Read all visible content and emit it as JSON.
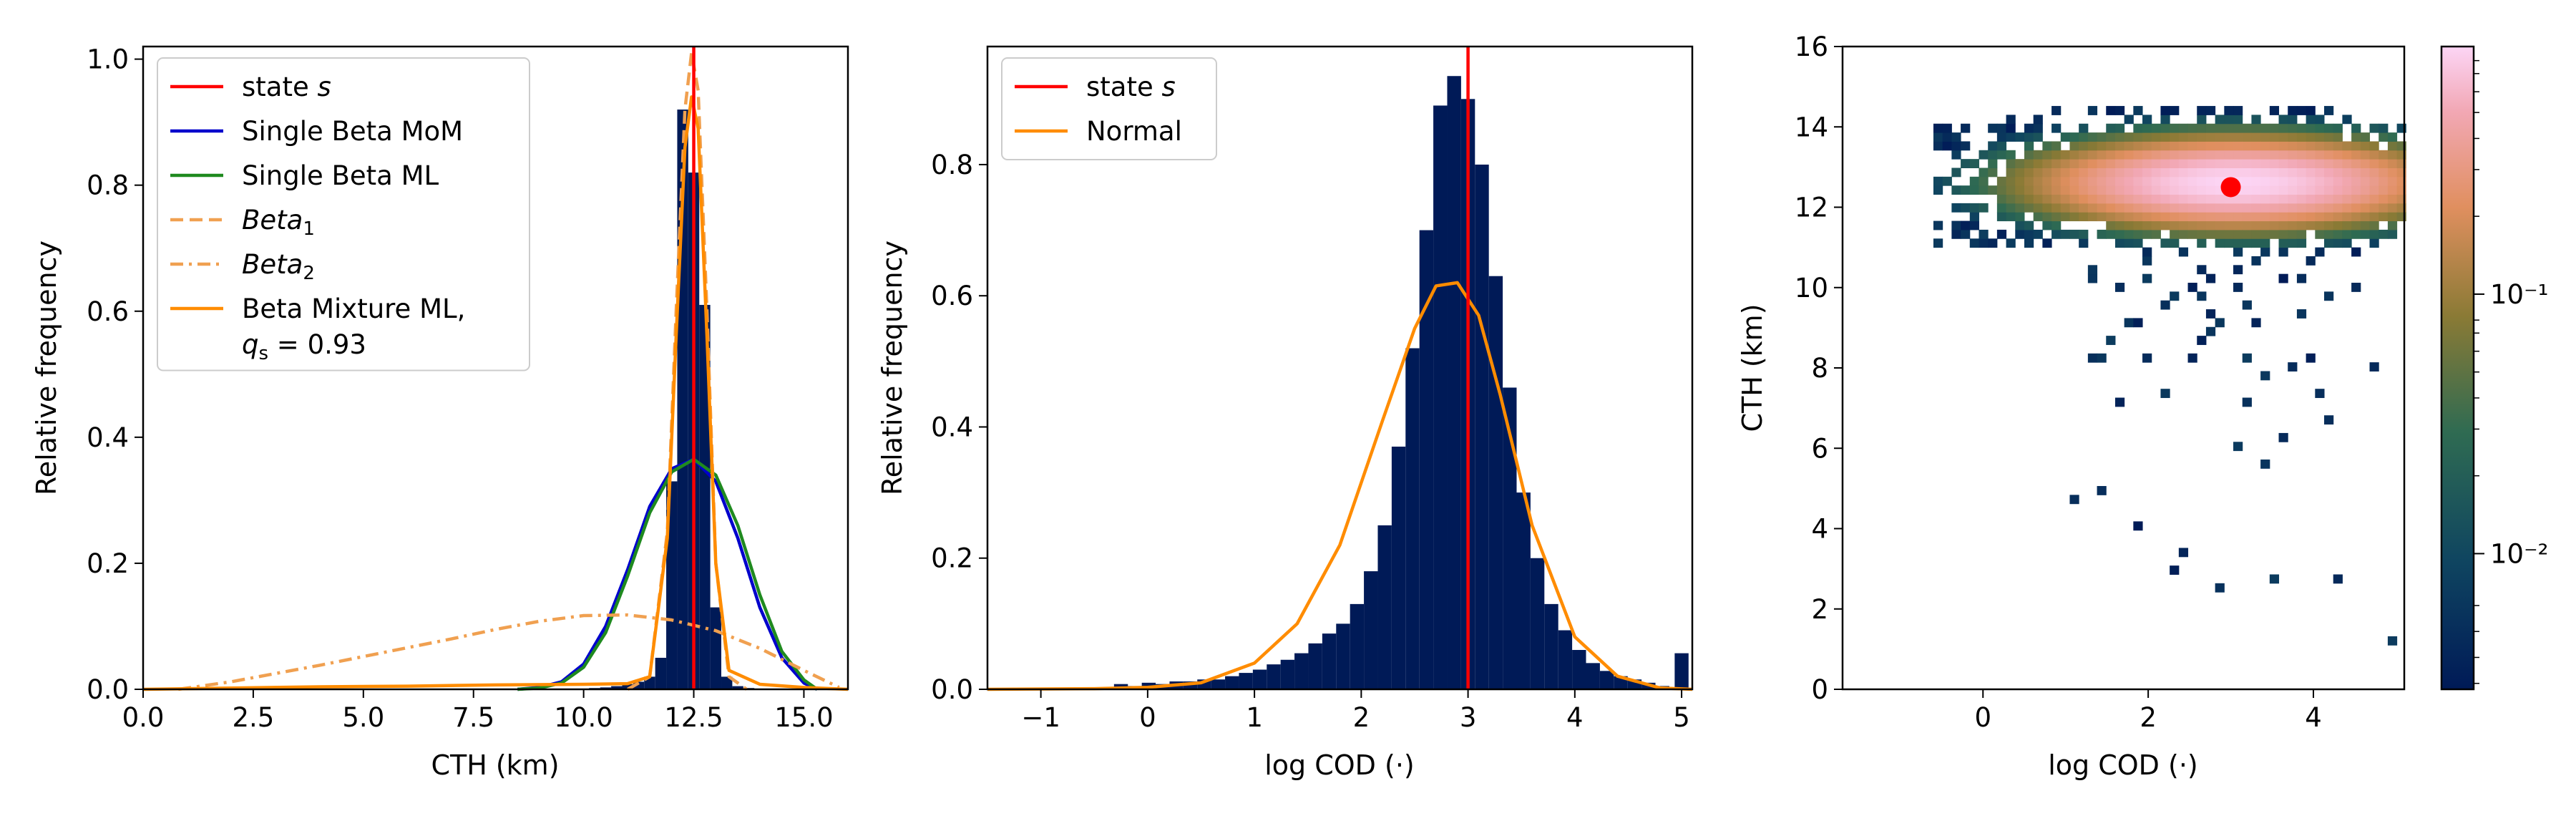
{
  "chart_data": [
    {
      "type": "bar",
      "xlabel": "CTH (km)",
      "ylabel": "Relative frequency",
      "xlim": [
        0,
        16
      ],
      "ylim": [
        0,
        1.02
      ],
      "xticks": [
        "0.0",
        "2.5",
        "5.0",
        "7.5",
        "10.0",
        "12.5",
        "15.0"
      ],
      "yticks": [
        "0.0",
        "0.2",
        "0.4",
        "0.6",
        "0.8",
        "1.0"
      ],
      "hist_color": "#001a57",
      "hist_bin_width": 0.25,
      "histogram": [
        [
          10.25,
          0.002
        ],
        [
          10.5,
          0.003
        ],
        [
          10.75,
          0.005
        ],
        [
          11.0,
          0.008
        ],
        [
          11.25,
          0.012
        ],
        [
          11.5,
          0.02
        ],
        [
          11.75,
          0.05
        ],
        [
          12.0,
          0.33
        ],
        [
          12.25,
          0.92
        ],
        [
          12.5,
          0.82
        ],
        [
          12.75,
          0.61
        ],
        [
          13.0,
          0.13
        ],
        [
          13.25,
          0.02
        ],
        [
          13.5,
          0.005
        ],
        [
          13.75,
          0.002
        ]
      ],
      "state_line": 12.5,
      "series": [
        {
          "name": "Single Beta MoM",
          "color": "#0000cc",
          "style": "solid",
          "x": [
            8.5,
            9.0,
            9.5,
            10.0,
            10.5,
            11.0,
            11.5,
            12.0,
            12.5,
            13.0,
            13.5,
            14.0,
            14.5,
            15.0,
            15.3
          ],
          "y": [
            0.0,
            0.003,
            0.012,
            0.04,
            0.1,
            0.19,
            0.29,
            0.35,
            0.365,
            0.33,
            0.24,
            0.13,
            0.05,
            0.01,
            0.0
          ]
        },
        {
          "name": "Single Beta ML",
          "color": "#1f8a1f",
          "style": "solid",
          "x": [
            8.5,
            9.0,
            9.5,
            10.0,
            10.5,
            11.0,
            11.5,
            12.0,
            12.5,
            13.0,
            13.5,
            14.0,
            14.5,
            15.0,
            15.3
          ],
          "y": [
            0.0,
            0.002,
            0.01,
            0.035,
            0.09,
            0.18,
            0.28,
            0.345,
            0.365,
            0.34,
            0.26,
            0.15,
            0.06,
            0.015,
            0.0
          ]
        },
        {
          "name": "Beta<sub>1</sub>",
          "color": "#f0a050",
          "style": "dashed",
          "x": [
            11.0,
            11.5,
            11.9,
            12.1,
            12.3,
            12.45,
            12.6,
            12.8,
            13.0,
            13.3,
            13.7
          ],
          "y": [
            0.0,
            0.02,
            0.25,
            0.6,
            0.92,
            1.01,
            0.95,
            0.6,
            0.2,
            0.02,
            0.0
          ]
        },
        {
          "name": "Beta<sub>2</sub>",
          "color": "#f0a050",
          "style": "dashdot",
          "x": [
            0.8,
            2.0,
            3.0,
            4.0,
            5.0,
            6.0,
            7.0,
            8.0,
            9.0,
            10.0,
            11.0,
            12.0,
            13.0,
            14.0,
            15.0,
            15.8
          ],
          "y": [
            0.0,
            0.012,
            0.025,
            0.038,
            0.052,
            0.066,
            0.08,
            0.095,
            0.108,
            0.117,
            0.118,
            0.11,
            0.093,
            0.065,
            0.03,
            0.003
          ]
        },
        {
          "name": "Beta Mixture ML,",
          "name_line2": "q<sub>s</sub> = 0.93",
          "color": "#ff8c00",
          "style": "solid",
          "x": [
            0.0,
            2.0,
            4.0,
            6.0,
            8.0,
            10.0,
            11.0,
            11.5,
            11.9,
            12.1,
            12.3,
            12.45,
            12.6,
            12.8,
            13.0,
            13.3,
            14.0,
            15.0,
            16.0
          ],
          "y": [
            0.0,
            0.002,
            0.004,
            0.005,
            0.007,
            0.008,
            0.009,
            0.02,
            0.24,
            0.56,
            0.86,
            0.94,
            0.89,
            0.56,
            0.2,
            0.03,
            0.008,
            0.003,
            0.0
          ]
        }
      ],
      "legend": "top-left"
    },
    {
      "type": "bar",
      "xlabel": "log COD (·)",
      "ylabel": "Relative frequency",
      "xlim": [
        -1.5,
        5.1
      ],
      "ylim": [
        0,
        0.98
      ],
      "xticks": [
        "−1",
        "0",
        "1",
        "2",
        "3",
        "4",
        "5"
      ],
      "yticks": [
        "0.0",
        "0.2",
        "0.4",
        "0.6",
        "0.8"
      ],
      "hist_color": "#001a57",
      "hist_bin_width": 0.13,
      "histogram": [
        [
          -0.25,
          0.008
        ],
        [
          -0.12,
          0.005
        ],
        [
          0.01,
          0.01
        ],
        [
          0.14,
          0.008
        ],
        [
          0.27,
          0.012
        ],
        [
          0.4,
          0.012
        ],
        [
          0.53,
          0.015
        ],
        [
          0.66,
          0.015
        ],
        [
          0.79,
          0.02
        ],
        [
          0.92,
          0.025
        ],
        [
          1.05,
          0.03
        ],
        [
          1.18,
          0.038
        ],
        [
          1.31,
          0.045
        ],
        [
          1.44,
          0.055
        ],
        [
          1.57,
          0.07
        ],
        [
          1.7,
          0.085
        ],
        [
          1.83,
          0.1
        ],
        [
          1.96,
          0.13
        ],
        [
          2.09,
          0.18
        ],
        [
          2.22,
          0.25
        ],
        [
          2.35,
          0.37
        ],
        [
          2.48,
          0.52
        ],
        [
          2.61,
          0.7
        ],
        [
          2.74,
          0.89
        ],
        [
          2.87,
          0.935
        ],
        [
          3.0,
          0.9
        ],
        [
          3.13,
          0.8
        ],
        [
          3.26,
          0.63
        ],
        [
          3.39,
          0.46
        ],
        [
          3.52,
          0.3
        ],
        [
          3.65,
          0.2
        ],
        [
          3.78,
          0.13
        ],
        [
          3.91,
          0.09
        ],
        [
          4.04,
          0.06
        ],
        [
          4.17,
          0.04
        ],
        [
          4.3,
          0.028
        ],
        [
          4.43,
          0.02
        ],
        [
          4.56,
          0.015
        ],
        [
          4.69,
          0.01
        ],
        [
          4.82,
          0.005
        ],
        [
          5.0,
          0.055
        ]
      ],
      "state_line": 3.0,
      "series": [
        {
          "name": "Normal",
          "color": "#ff8c00",
          "style": "solid",
          "x": [
            -1.5,
            -0.5,
            0.0,
            0.5,
            1.0,
            1.4,
            1.8,
            2.2,
            2.5,
            2.7,
            2.9,
            3.1,
            3.3,
            3.6,
            4.0,
            4.4,
            4.8,
            5.1
          ],
          "y": [
            0.0,
            0.001,
            0.003,
            0.01,
            0.04,
            0.1,
            0.22,
            0.41,
            0.55,
            0.615,
            0.62,
            0.57,
            0.45,
            0.25,
            0.08,
            0.02,
            0.002,
            0.0
          ]
        }
      ],
      "legend": "top-left"
    },
    {
      "type": "heatmap",
      "xlabel": "log COD (·)",
      "ylabel": "CTH (km)",
      "xlim": [
        -1.7,
        5.1
      ],
      "ylim": [
        0,
        16
      ],
      "xticks": [
        "0",
        "2",
        "4"
      ],
      "yticks": [
        "0",
        "2",
        "4",
        "6",
        "8",
        "10",
        "12",
        "14",
        "16"
      ],
      "colorbar": {
        "scale": "log",
        "range": [
          0.003,
          0.9
        ],
        "tick_labels": [
          "10⁻¹",
          "10⁻²"
        ]
      },
      "peak": {
        "x": 3.0,
        "y": 12.5,
        "value": 0.9
      },
      "spread": {
        "sx": 1.2,
        "sy": 0.55
      },
      "marker": {
        "x": 3.0,
        "y": 12.5,
        "color": "#ff0000"
      }
    }
  ],
  "colors": {
    "state": "#ff0000",
    "hist": "#001a57",
    "mom": "#0000cc",
    "ml": "#1f8a1f",
    "beta_components": "#f0a050",
    "mixture": "#ff8c00"
  },
  "legend_labels": {
    "state": "state s",
    "state_prefix": "state ",
    "state_var": "s"
  }
}
